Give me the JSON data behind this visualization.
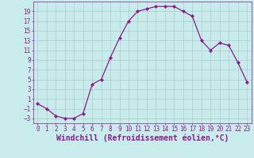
{
  "x": [
    0,
    1,
    2,
    3,
    4,
    5,
    6,
    7,
    8,
    9,
    10,
    11,
    12,
    13,
    14,
    15,
    16,
    17,
    18,
    19,
    20,
    21,
    22,
    23
  ],
  "y": [
    0,
    -1,
    -2.5,
    -3,
    -3,
    -2,
    4,
    5,
    9.5,
    13.5,
    17,
    19,
    19.5,
    20,
    20,
    20,
    19,
    18,
    13,
    11,
    12.5,
    12,
    8.5,
    4.5
  ],
  "line_color": "#8B1A8B",
  "marker": "D",
  "marker_size": 2.0,
  "bg_color": "#C8ECEC",
  "grid_color": "#AACCCC",
  "xlabel": "Windchill (Refroidissement éolien,°C)",
  "xlim": [
    -0.5,
    23.5
  ],
  "ylim": [
    -4,
    21
  ],
  "yticks": [
    -3,
    -1,
    1,
    3,
    5,
    7,
    9,
    11,
    13,
    15,
    17,
    19
  ],
  "xticks": [
    0,
    1,
    2,
    3,
    4,
    5,
    6,
    7,
    8,
    9,
    10,
    11,
    12,
    13,
    14,
    15,
    16,
    17,
    18,
    19,
    20,
    21,
    22,
    23
  ],
  "tick_fontsize": 5.5,
  "xlabel_fontsize": 7.0,
  "tick_color": "#8B1A8B",
  "line_width": 0.9
}
